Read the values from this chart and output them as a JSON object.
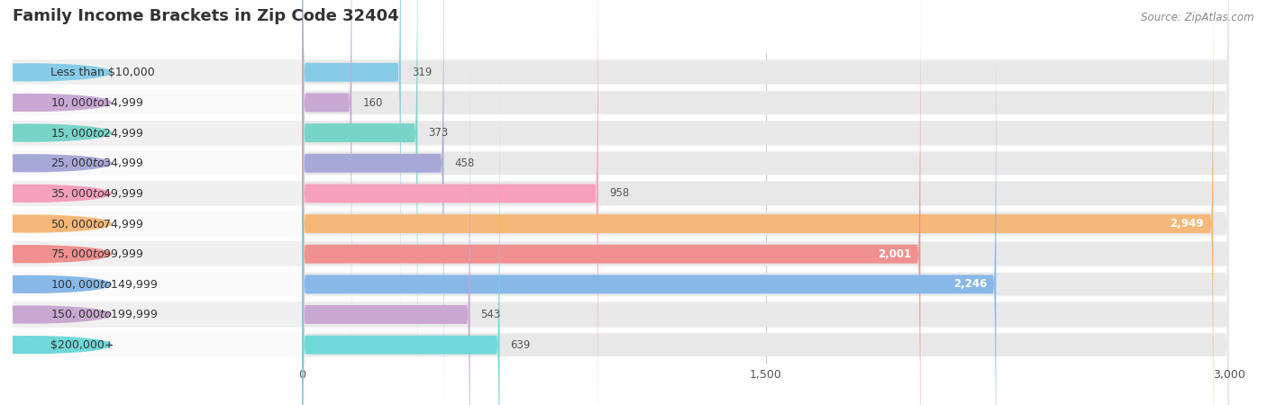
{
  "title": "Family Income Brackets in Zip Code 32404",
  "source": "Source: ZipAtlas.com",
  "categories": [
    "Less than $10,000",
    "$10,000 to $14,999",
    "$15,000 to $24,999",
    "$25,000 to $34,999",
    "$35,000 to $49,999",
    "$50,000 to $74,999",
    "$75,000 to $99,999",
    "$100,000 to $149,999",
    "$150,000 to $199,999",
    "$200,000+"
  ],
  "values": [
    319,
    160,
    373,
    458,
    958,
    2949,
    2001,
    2246,
    543,
    639
  ],
  "bar_colors": [
    "#86cce8",
    "#c9a8d4",
    "#78d4c8",
    "#a8a8d8",
    "#f5a0bc",
    "#f5b878",
    "#f09090",
    "#88b8e8",
    "#c8a8d0",
    "#70d8d8"
  ],
  "xlim_max": 3000,
  "xticks": [
    0,
    1500,
    3000
  ],
  "xtick_labels": [
    "0",
    "1,500",
    "3,000"
  ],
  "background_color": "#ffffff",
  "row_bg_even": "#f0f0f0",
  "row_bg_odd": "#fafafa",
  "bar_bg_color": "#e8e8e8",
  "title_fontsize": 13,
  "label_fontsize": 9,
  "value_fontsize": 8.5,
  "source_fontsize": 8.5,
  "title_color": "#333333",
  "label_color": "#333333",
  "value_color_inside": "#ffffff",
  "value_color_outside": "#555555",
  "inside_threshold": 1500
}
